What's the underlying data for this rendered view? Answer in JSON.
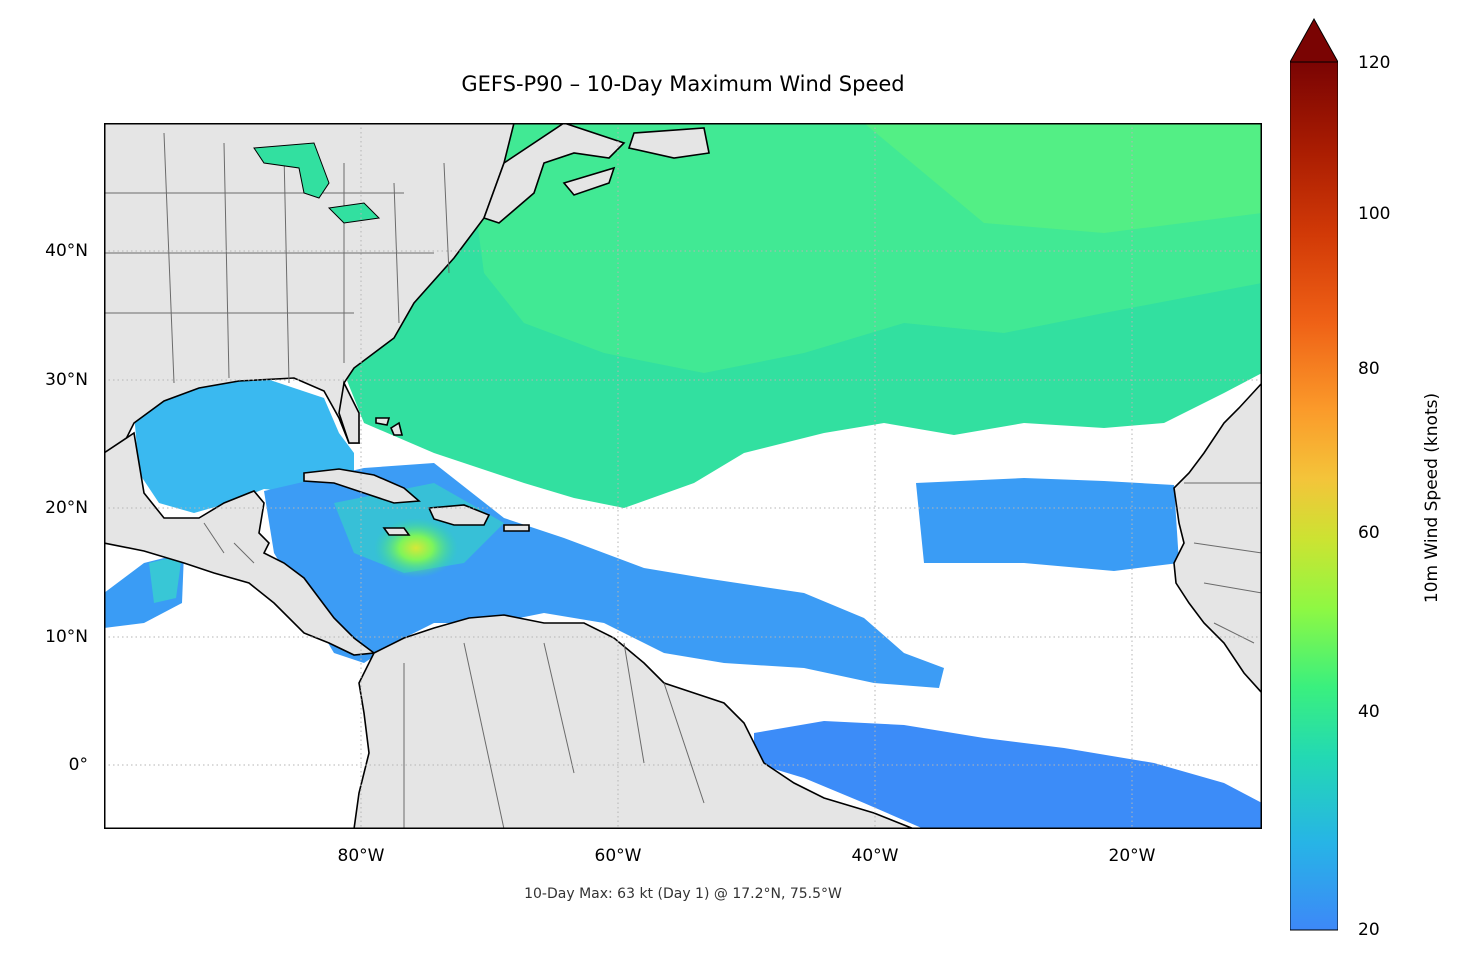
{
  "title": "GEFS-P90 – 10-Day Maximum Wind Speed",
  "footnote": "10-Day Max: 63 kt (Day 1) @ 17.2°N, 75.5°W",
  "map": {
    "lat_ticks": [
      "40°N",
      "30°N",
      "20°N",
      "10°N",
      "0°"
    ],
    "lon_ticks": [
      "80°W",
      "60°W",
      "40°W",
      "20°W"
    ],
    "land_color": "#e5e5e5",
    "coast_color": "#000000",
    "border_color": "#6b6b6b",
    "gridlines": true
  },
  "colorbar": {
    "label": "10m Wind Speed (knots)",
    "ticks": [
      "20",
      "40",
      "60",
      "80",
      "100",
      "120"
    ],
    "colormap": "turbo",
    "extend": "max",
    "range": [
      20,
      120
    ]
  },
  "max_marker": {
    "value_kt": 63,
    "day": 1,
    "lat": 17.2,
    "lon": -75.5
  }
}
